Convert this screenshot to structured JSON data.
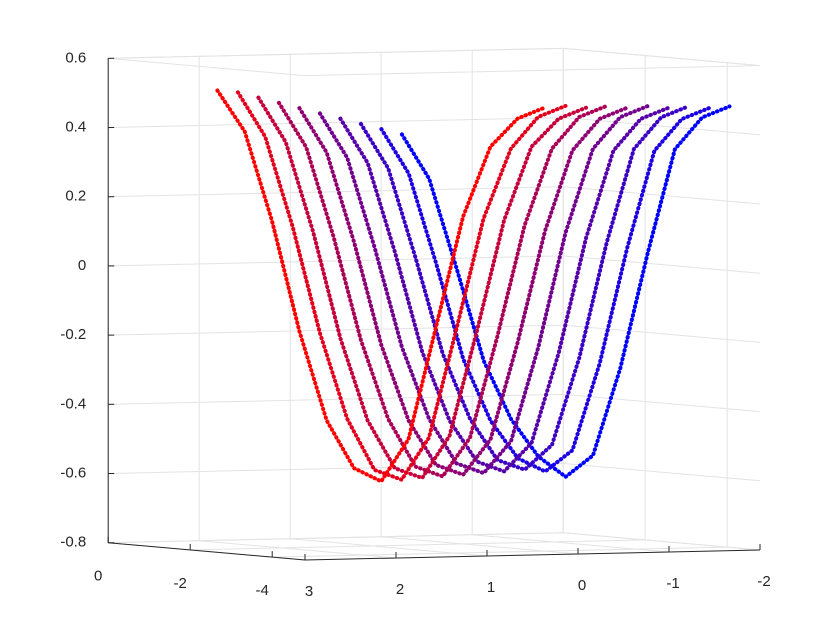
{
  "chart_data": {
    "type": "scatter3",
    "xlim": [
      -2,
      3
    ],
    "xticks": [
      3,
      2,
      1,
      0,
      -1,
      -2
    ],
    "ylim": [
      -4.8,
      0
    ],
    "yticks": [
      0,
      -2,
      -4
    ],
    "zlim": [
      -0.8,
      0.6
    ],
    "zticks": [
      0.6,
      0.4,
      0.2,
      0,
      -0.2,
      -0.4,
      -0.6,
      -0.8
    ],
    "grid": true,
    "x": [
      1.8,
      1.5,
      1.2,
      0.9,
      0.6,
      0.3,
      0,
      -0.3,
      -0.6,
      -0.9,
      -1.2,
      -1.5,
      -1.8
    ],
    "series": [
      {
        "color": "#ff0000",
        "y": 0,
        "z": [
          0.5,
          0.38,
          0.12,
          -0.2,
          -0.46,
          -0.6,
          -0.64,
          -0.52,
          -0.2,
          0.12,
          0.32,
          0.4,
          0.43
        ]
      },
      {
        "color": "#e3001c",
        "y": -0.5,
        "z": [
          0.5,
          0.37,
          0.11,
          -0.2,
          -0.45,
          -0.6,
          -0.63,
          -0.51,
          -0.2,
          0.12,
          0.32,
          0.41,
          0.44
        ]
      },
      {
        "color": "#c60039",
        "y": -1,
        "z": [
          0.49,
          0.36,
          0.1,
          -0.21,
          -0.45,
          -0.59,
          -0.62,
          -0.5,
          -0.2,
          0.12,
          0.33,
          0.41,
          0.44
        ]
      },
      {
        "color": "#aa0055",
        "y": -1.5,
        "z": [
          0.48,
          0.35,
          0.09,
          -0.21,
          -0.44,
          -0.58,
          -0.61,
          -0.5,
          -0.21,
          0.11,
          0.33,
          0.42,
          0.45
        ]
      },
      {
        "color": "#8e0071",
        "y": -2,
        "z": [
          0.47,
          0.34,
          0.08,
          -0.22,
          -0.44,
          -0.57,
          -0.6,
          -0.5,
          -0.22,
          0.1,
          0.33,
          0.42,
          0.45
        ]
      },
      {
        "color": "#71008e",
        "y": -2.5,
        "z": [
          0.46,
          0.33,
          0.07,
          -0.22,
          -0.43,
          -0.56,
          -0.59,
          -0.5,
          -0.23,
          0.1,
          0.34,
          0.43,
          0.46
        ]
      },
      {
        "color": "#5500aa",
        "y": -3,
        "z": [
          0.45,
          0.32,
          0.06,
          -0.23,
          -0.43,
          -0.55,
          -0.58,
          -0.5,
          -0.24,
          0.09,
          0.34,
          0.43,
          0.46
        ]
      },
      {
        "color": "#3900c6",
        "y": -3.5,
        "z": [
          0.44,
          0.31,
          0.05,
          -0.23,
          -0.42,
          -0.54,
          -0.57,
          -0.5,
          -0.25,
          0.08,
          0.35,
          0.44,
          0.47
        ]
      },
      {
        "color": "#1c00e3",
        "y": -4,
        "z": [
          0.43,
          0.3,
          0.04,
          -0.24,
          -0.42,
          -0.53,
          -0.57,
          -0.51,
          -0.26,
          0.07,
          0.35,
          0.44,
          0.47
        ]
      },
      {
        "color": "#0000ff",
        "y": -4.5,
        "z": [
          0.42,
          0.29,
          0.03,
          -0.24,
          -0.41,
          -0.52,
          -0.58,
          -0.52,
          -0.27,
          0.06,
          0.36,
          0.45,
          0.48
        ]
      }
    ]
  }
}
